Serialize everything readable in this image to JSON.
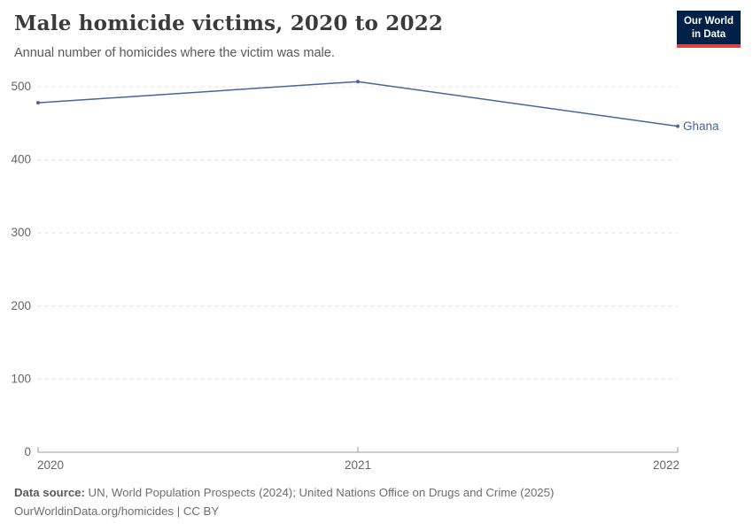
{
  "header": {
    "title": "Male homicide victims, 2020 to 2022",
    "subtitle": "Annual number of homicides where the victim was male.",
    "logo": {
      "line1": "Our World",
      "line2": "in Data",
      "bg_color": "#002147",
      "accent_color": "#dc4540"
    }
  },
  "chart_data": {
    "type": "line",
    "title": "Male homicide victims, 2020 to 2022",
    "x": [
      2020,
      2021,
      2022
    ],
    "xticks": [
      2020,
      2021,
      2022
    ],
    "series": [
      {
        "name": "Ghana",
        "values": [
          478,
          507,
          446
        ],
        "color": "#44669f"
      }
    ],
    "ylim": [
      0,
      500
    ],
    "yticks": [
      0,
      100,
      200,
      300,
      400,
      500
    ],
    "xlabel": "",
    "ylabel": "",
    "grid": "horizontal-dashed",
    "legend_position": "end-of-line-label"
  },
  "colors": {
    "line": "#44669f",
    "grid": "#dddddd",
    "axis": "#999999",
    "tick_label": "#666666"
  },
  "footer": {
    "data_source_label": "Data source:",
    "data_source_text": " UN, World Population Prospects (2024); United Nations Office on Drugs and Crime (2025)",
    "license_line": "OurWorldinData.org/homicides | CC BY"
  }
}
